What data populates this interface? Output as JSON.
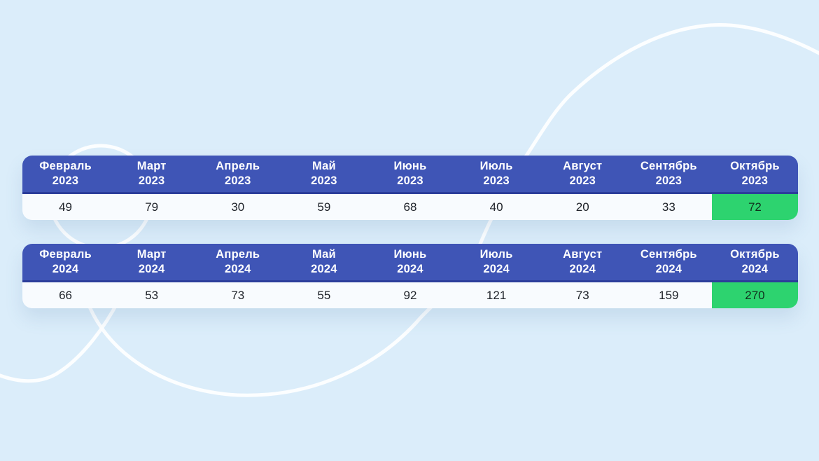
{
  "page": {
    "background": "#dbedfa"
  },
  "decor": {
    "arc_color": "#ffffff",
    "arc_opacity": 0.92,
    "arc_width": 5,
    "shapes": [
      "small-circle-left",
      "large-swoosh-top-right",
      "u-arc-bottom-left",
      "dip-arc-left"
    ]
  },
  "theme": {
    "header_bg": "#3f55b6",
    "header_divider": "#2c3e9b",
    "header_text": "#ffffff",
    "row_bg": "#f8fbfe",
    "row_text": "#20242b",
    "highlight_bg": "#2dd36f",
    "highlight_text": "#11301d"
  },
  "tables": [
    {
      "id": "table-2023",
      "columns": [
        {
          "month": "Февраль",
          "year": "2023"
        },
        {
          "month": "Март",
          "year": "2023"
        },
        {
          "month": "Апрель",
          "year": "2023"
        },
        {
          "month": "Май",
          "year": "2023"
        },
        {
          "month": "Июнь",
          "year": "2023"
        },
        {
          "month": "Июль",
          "year": "2023"
        },
        {
          "month": "Август",
          "year": "2023"
        },
        {
          "month": "Сентябрь",
          "year": "2023"
        },
        {
          "month": "Октябрь",
          "year": "2023"
        }
      ],
      "values": [
        "49",
        "79",
        "30",
        "59",
        "68",
        "40",
        "20",
        "33",
        "72"
      ],
      "highlight_index": 8
    },
    {
      "id": "table-2024",
      "columns": [
        {
          "month": "Февраль",
          "year": "2024"
        },
        {
          "month": "Март",
          "year": "2024"
        },
        {
          "month": "Апрель",
          "year": "2024"
        },
        {
          "month": "Май",
          "year": "2024"
        },
        {
          "month": "Июнь",
          "year": "2024"
        },
        {
          "month": "Июль",
          "year": "2024"
        },
        {
          "month": "Август",
          "year": "2024"
        },
        {
          "month": "Сентябрь",
          "year": "2024"
        },
        {
          "month": "Октябрь",
          "year": "2024"
        }
      ],
      "values": [
        "66",
        "53",
        "73",
        "55",
        "92",
        "121",
        "73",
        "159",
        "270"
      ],
      "highlight_index": 8
    }
  ],
  "chart_data": {
    "type": "table",
    "categories": [
      "Февраль",
      "Март",
      "Апрель",
      "Май",
      "Июнь",
      "Июль",
      "Август",
      "Сентябрь",
      "Октябрь"
    ],
    "series": [
      {
        "name": "2023",
        "values": [
          49,
          79,
          30,
          59,
          68,
          40,
          20,
          33,
          72
        ]
      },
      {
        "name": "2024",
        "values": [
          66,
          53,
          73,
          55,
          92,
          121,
          73,
          159,
          270
        ]
      }
    ],
    "highlight": {
      "column": "Октябрь",
      "style": "green-cell",
      "values": [
        72,
        270
      ]
    },
    "title": "",
    "legend_position": "none",
    "grid": false
  }
}
